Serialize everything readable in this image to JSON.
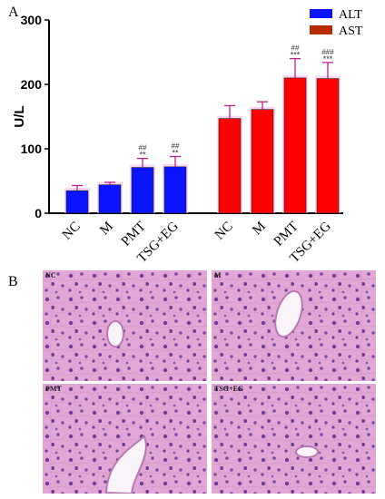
{
  "panels": {
    "a_label": "A",
    "b_label": "B"
  },
  "chart_data": {
    "type": "bar",
    "ylabel": "U/L",
    "ylim": [
      0,
      300
    ],
    "yticks": [
      0,
      100,
      200,
      300
    ],
    "grid": false,
    "legend_position": "top-right",
    "groups": [
      {
        "name": "ALT",
        "color": "#0a14ff",
        "categories": [
          "NC",
          "M",
          "PMT",
          "TSG+EG"
        ],
        "values": [
          35,
          44,
          71,
          72
        ],
        "errors": [
          8,
          4,
          14,
          16
        ],
        "annotations": [
          "",
          "",
          "**",
          "**"
        ],
        "annotations2": [
          "",
          "",
          "##",
          "##"
        ]
      },
      {
        "name": "AST",
        "color": "#ff0000",
        "categories": [
          "NC",
          "M",
          "PMT",
          "TSG+EG"
        ],
        "values": [
          147,
          161,
          210,
          209
        ],
        "errors": [
          20,
          12,
          30,
          25
        ],
        "annotations": [
          "",
          "",
          "***",
          "***"
        ],
        "annotations2": [
          "",
          "",
          "##",
          "###"
        ]
      }
    ],
    "legend": [
      {
        "label": "ALT",
        "color": "#0a14ff"
      },
      {
        "label": "AST",
        "color": "#b52a00"
      }
    ]
  },
  "micrographs": [
    {
      "label": "NC"
    },
    {
      "label": "M"
    },
    {
      "label": "PMT"
    },
    {
      "label": "TSG+EG"
    }
  ]
}
